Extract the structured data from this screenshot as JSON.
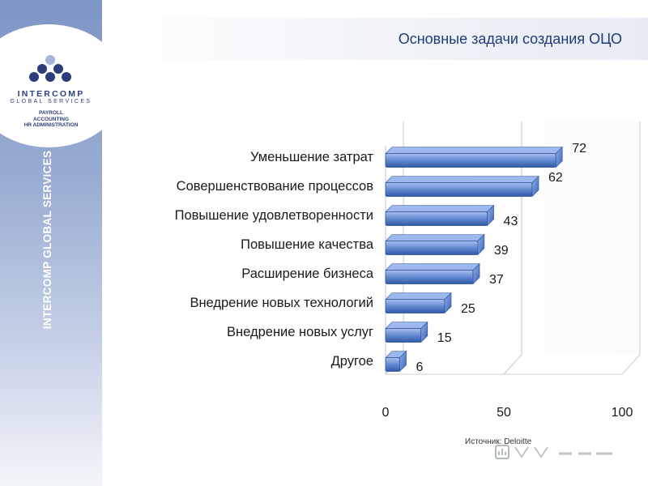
{
  "brand": {
    "name": "INTERCOMP",
    "subtitle": "GLOBAL SERVICES",
    "services": [
      "PAYROLL",
      "ACCOUNTING",
      "HR ADMINISTRATION"
    ],
    "vertical_text": "INTERCOMP GLOBAL SERVICES"
  },
  "page": {
    "title": "Основные задачи создания ОЦО",
    "source": "Источник: Deloitte"
  },
  "colors": {
    "accent": "#1f3b7a",
    "bar": "#5b82cc",
    "bar_light": "#a9c1ee",
    "bar_dark": "#2f58a8",
    "sidebar": "#8aa0cd"
  },
  "chart_data": {
    "type": "bar",
    "orientation": "horizontal",
    "title": "Основные задачи создания ОЦО",
    "categories": [
      "Уменьшение затрат",
      "Совершенствование процессов",
      "Повышение удовлетворенности",
      "Повышение качества",
      "Расширение  бизнеса",
      "Внедрение новых технологий",
      "Внедрение новых услуг",
      "Другое"
    ],
    "values": [
      72,
      62,
      43,
      39,
      37,
      25,
      15,
      6
    ],
    "xlim": [
      0,
      100
    ],
    "xticks": [
      0,
      50,
      100
    ],
    "xlabel": "",
    "ylabel": "",
    "grid": true,
    "three_d": true
  }
}
